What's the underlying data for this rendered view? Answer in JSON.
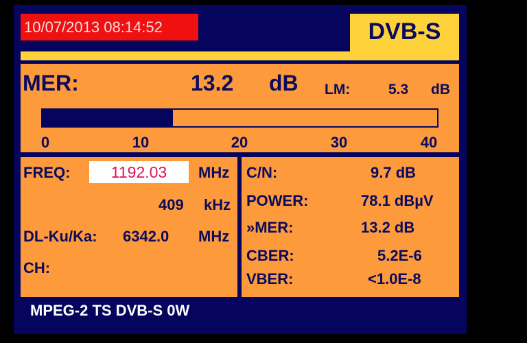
{
  "header": {
    "datetime": "10/07/2013 08:14:52",
    "mode": "DVB-S"
  },
  "mer": {
    "label": "MER:",
    "value": "13.2",
    "unit": "dB",
    "lm_label": "LM:",
    "lm_value": "5.3",
    "lm_unit": "dB",
    "bar_value": 13.2,
    "bar_max": 40,
    "ticks": [
      "0",
      "10",
      "20",
      "30",
      "40"
    ]
  },
  "left": {
    "freq_label": "FREQ:",
    "freq_value": "1192.03",
    "freq_unit": "MHz",
    "offset_value": "409",
    "offset_unit": "kHz",
    "dl_label": "DL-Ku/Ka:",
    "dl_value": "6342.0",
    "dl_unit": "MHz",
    "ch_label": "CH:"
  },
  "right": {
    "rows": [
      {
        "label": "C/N:",
        "value": "9.7 dB"
      },
      {
        "label": "POWER:",
        "value": "78.1 dBµV"
      },
      {
        "label": "»MER:",
        "value": "13.2 dB"
      },
      {
        "label": "CBER:",
        "value": "5.2E-6"
      },
      {
        "label": "VBER:",
        "value": "<1.0E-8"
      }
    ]
  },
  "footer": {
    "text": "MPEG-2 TS DVB-S 0W"
  },
  "colors": {
    "panel": "#05055e",
    "orange": "#fd9a3c",
    "yellow": "#fdd23a",
    "red": "#f01010",
    "freq": "#e0105a"
  }
}
